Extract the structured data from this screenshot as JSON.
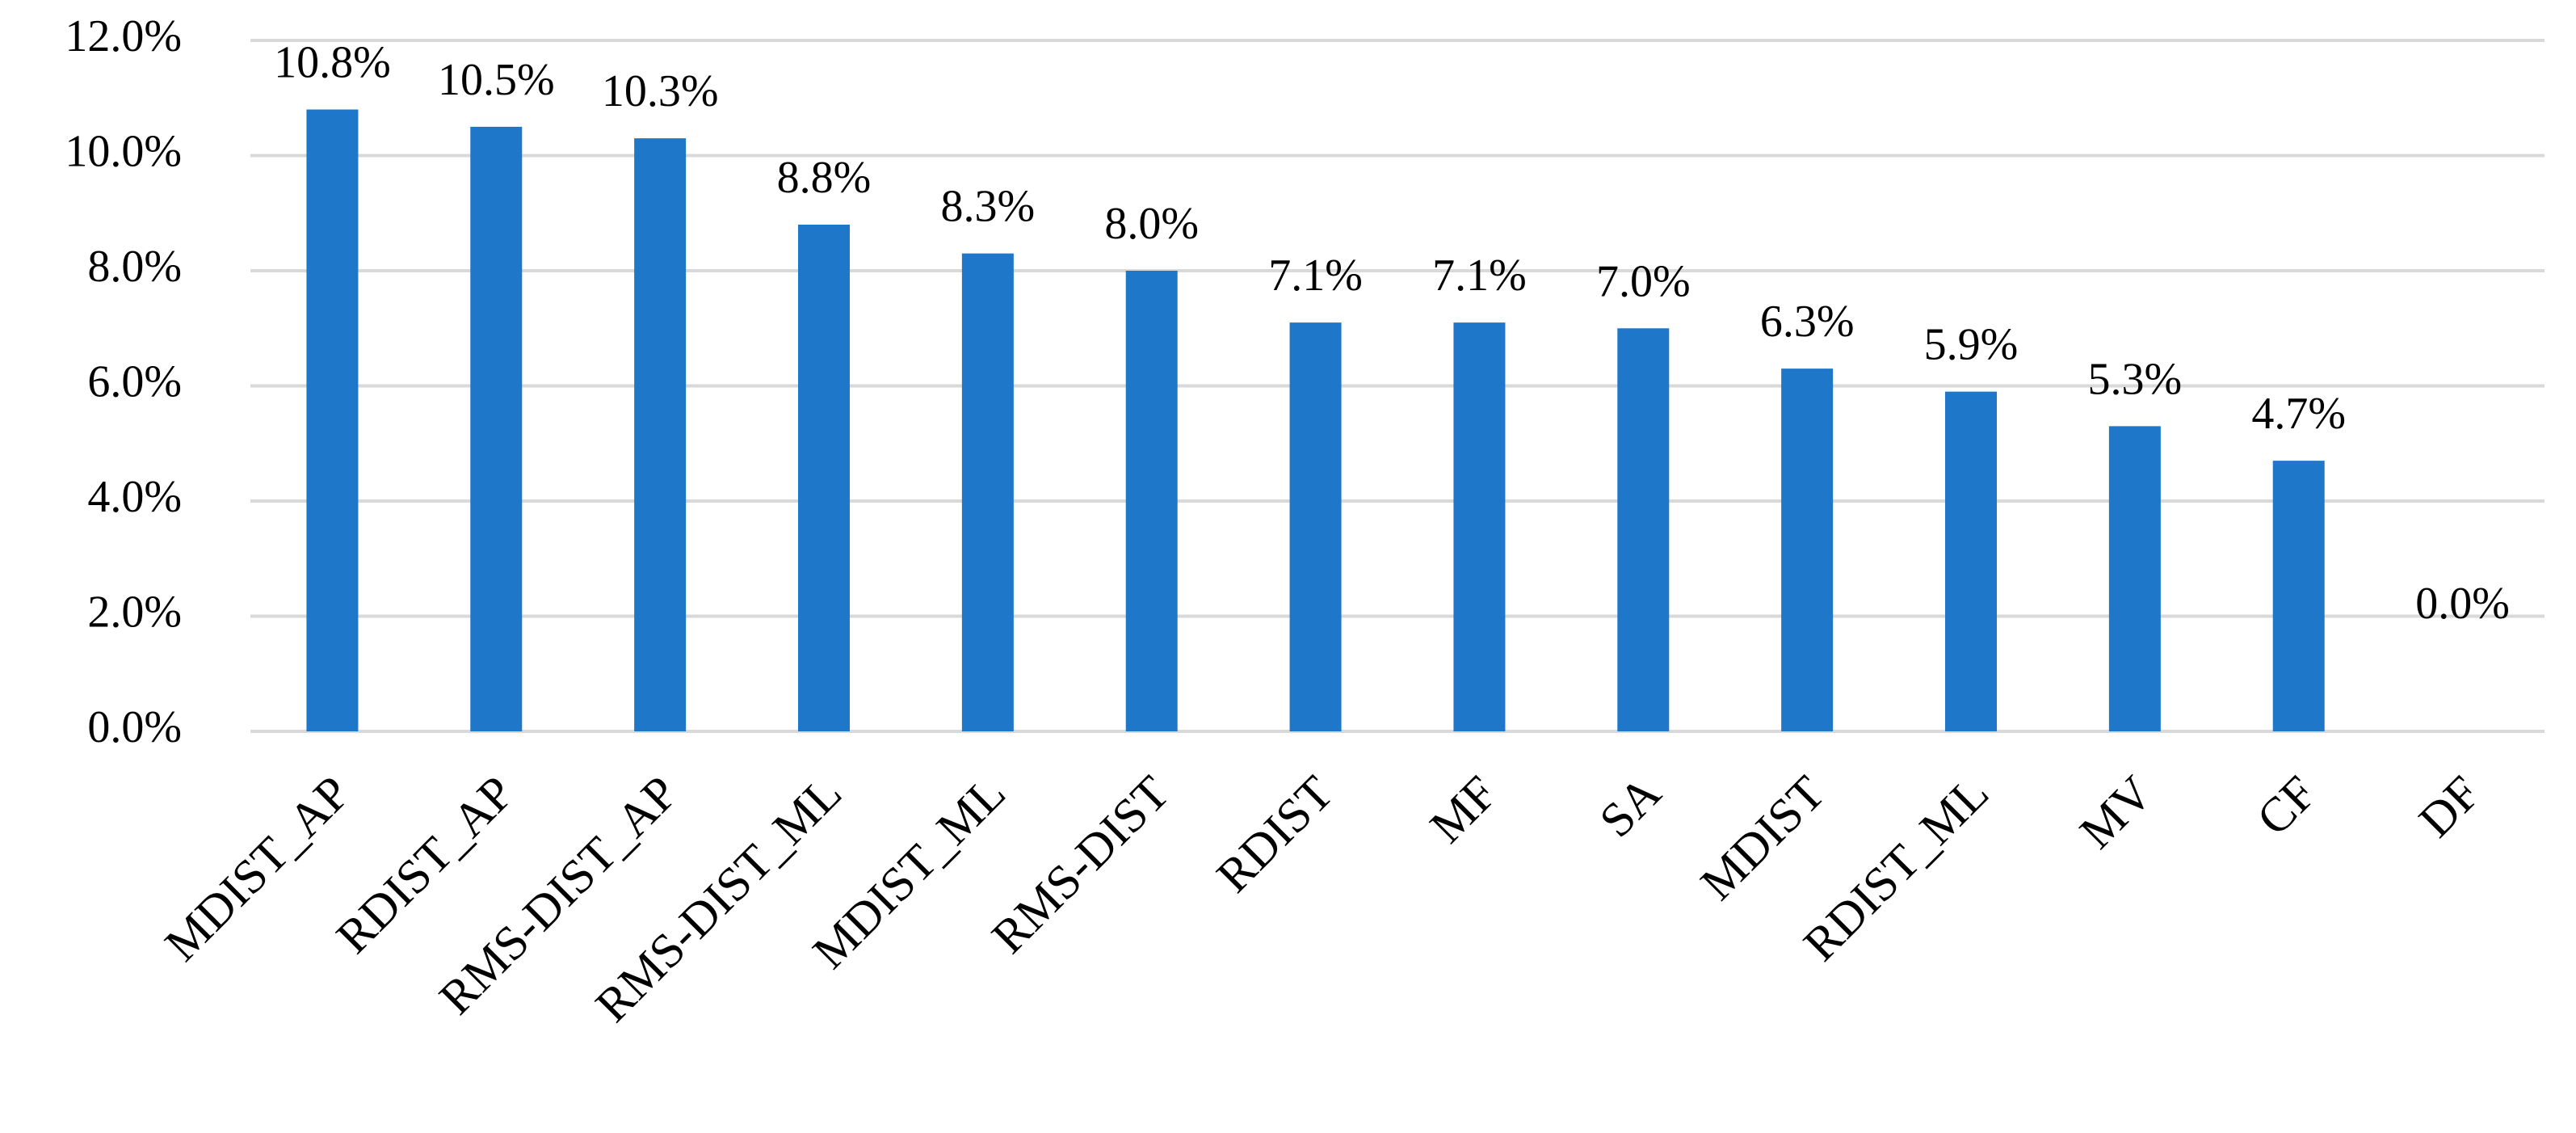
{
  "chart_data": {
    "type": "bar",
    "categories": [
      "MDIST_AP",
      "RDIST_AP",
      "RMS-DIST_AP",
      "RMS-DIST_ML",
      "MDIST_ML",
      "RMS-DIST",
      "RDIST",
      "MF",
      "SA",
      "MDIST",
      "RDIST_ML",
      "MV",
      "CF",
      "DF"
    ],
    "values": [
      10.8,
      10.5,
      10.3,
      8.8,
      8.3,
      8.0,
      7.1,
      7.1,
      7.0,
      6.3,
      5.9,
      5.3,
      4.7,
      0.0
    ],
    "data_labels": [
      "10.8%",
      "10.5%",
      "10.3%",
      "8.8%",
      "8.3%",
      "8.0%",
      "7.1%",
      "7.1%",
      "7.0%",
      "6.3%",
      "5.9%",
      "5.3%",
      "4.7%",
      "0.0%"
    ],
    "y_ticks": [
      0,
      2,
      4,
      6,
      8,
      10,
      12
    ],
    "y_tick_labels": [
      "0.0%",
      "2.0%",
      "4.0%",
      "6.0%",
      "8.0%",
      "10.0%",
      "12.0%"
    ],
    "ylim": [
      0,
      12
    ],
    "grid": true,
    "legend": "none",
    "bar_color": "#1f77c9",
    "grid_color": "#d9d9d9"
  }
}
